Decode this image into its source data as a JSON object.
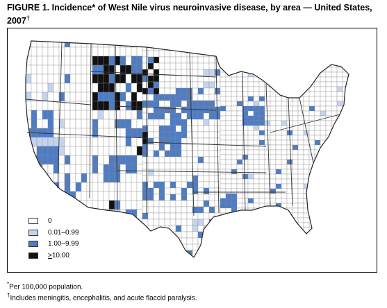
{
  "figure": {
    "title": "FIGURE 1. Incidence* of West Nile virus neuroinvasive disease, by area — United States, 2007",
    "title_mark": "†"
  },
  "legend": {
    "items": [
      {
        "label_prefix": "",
        "label_main": "0",
        "color": "#ffffff"
      },
      {
        "label_prefix": "",
        "label_main": "0.01–0.99",
        "color": "#c5d3ec"
      },
      {
        "label_prefix": "",
        "label_main": "1.00–9.99",
        "color": "#4f7cc3"
      },
      {
        "label_prefix": ">",
        "label_main": "10.00",
        "color": "#111111"
      }
    ]
  },
  "footnotes": {
    "note1_mark": "*",
    "note1_text": "Per 100,000 population.",
    "note2_mark": "†",
    "note2_text": "Includes meningitis, encephalitis, and acute flaccid paralysis."
  },
  "map_colors": {
    "county_fill": "#ffffff",
    "county_line": "#8a8a8a",
    "state_line": "#333333",
    "low": "#c5d3ec",
    "mid": "#4f7cc3",
    "high": "#111111"
  }
}
